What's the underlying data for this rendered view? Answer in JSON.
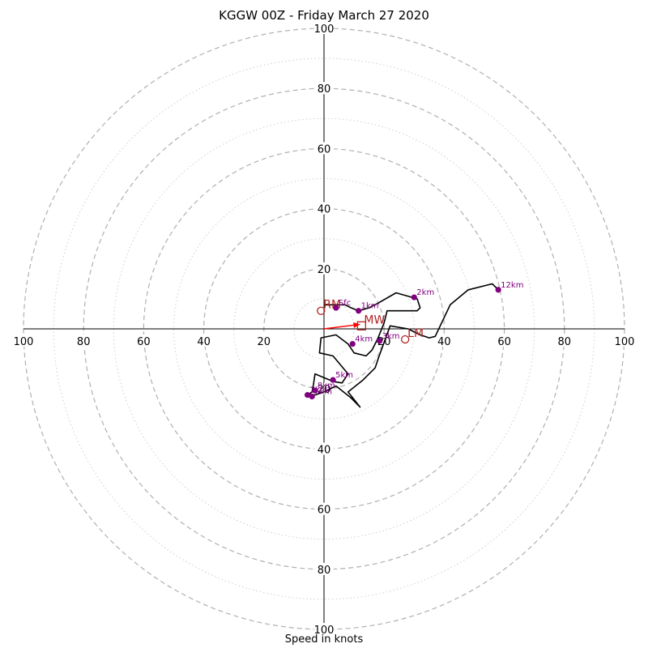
{
  "chart_data": {
    "type": "hodograph",
    "title": "KGGW 00Z - Friday March 27 2020",
    "xlabel": "Speed in knots",
    "range": 100,
    "rings_major": [
      20,
      40,
      60,
      80,
      100
    ],
    "rings_minor": [
      10,
      30,
      50,
      70,
      90
    ],
    "tick_values": [
      20,
      40,
      60,
      80,
      100
    ],
    "trace_color": "#000000",
    "marker_color": "#800080",
    "motion_color": "#b22222",
    "shear_arrow_color": "#ff0000",
    "trace": [
      [
        0,
        8
      ],
      [
        7,
        8
      ],
      [
        9,
        7
      ],
      [
        11.5,
        6
      ],
      [
        15,
        7
      ],
      [
        17,
        8
      ],
      [
        24,
        12
      ],
      [
        31,
        10
      ],
      [
        32,
        7
      ],
      [
        31,
        6
      ],
      [
        21,
        6
      ],
      [
        20,
        2
      ],
      [
        18,
        -3
      ],
      [
        16,
        -7
      ],
      [
        14,
        -9
      ],
      [
        10,
        -8
      ],
      [
        8,
        -5
      ],
      [
        4,
        -2
      ],
      [
        -1,
        -3
      ],
      [
        -1.5,
        -8
      ],
      [
        3,
        -9
      ],
      [
        8,
        -15
      ],
      [
        6,
        -18
      ],
      [
        3,
        -17.5
      ],
      [
        -3,
        -15
      ],
      [
        -3.5,
        -18.5
      ],
      [
        -4,
        -21
      ],
      [
        -5.5,
        -22
      ],
      [
        -3,
        -22
      ],
      [
        0,
        -21
      ],
      [
        4,
        -19
      ],
      [
        9,
        -23
      ],
      [
        12,
        -26
      ],
      [
        8,
        -21
      ],
      [
        13,
        -17
      ],
      [
        17,
        -13
      ],
      [
        18,
        -10
      ],
      [
        22,
        1
      ],
      [
        28,
        0
      ],
      [
        32,
        -2
      ],
      [
        35,
        -3
      ],
      [
        37,
        -2.5
      ],
      [
        42,
        8
      ],
      [
        48,
        13
      ],
      [
        56,
        15
      ],
      [
        58,
        13
      ]
    ],
    "height_markers": [
      {
        "label": "Sfc",
        "u": 4,
        "v": 7
      },
      {
        "label": "1km",
        "u": 11.5,
        "v": 6
      },
      {
        "label": "2km",
        "u": 30,
        "v": 10.5
      },
      {
        "label": "3km",
        "u": 18.5,
        "v": -4
      },
      {
        "label": "4km",
        "u": 9.5,
        "v": -5
      },
      {
        "label": "5km",
        "u": 3,
        "v": -17
      },
      {
        "label": "6km",
        "u": -4,
        "v": -22.5
      },
      {
        "label": "7km",
        "u": -5.5,
        "v": -22
      },
      {
        "label": "8km",
        "u": -3,
        "v": -20.5
      },
      {
        "label": "12km",
        "u": 58,
        "v": 13
      }
    ],
    "storm_motions": [
      {
        "label": "RM",
        "u": -1,
        "v": 6,
        "symbol": "circle"
      },
      {
        "label": "LM",
        "u": 27,
        "v": -3.5,
        "symbol": "circle"
      },
      {
        "label": "MW",
        "u": 12.5,
        "v": 1,
        "symbol": "square"
      }
    ],
    "shear_arrow": {
      "from": [
        0,
        0
      ],
      "to": [
        12,
        1.5
      ]
    }
  }
}
